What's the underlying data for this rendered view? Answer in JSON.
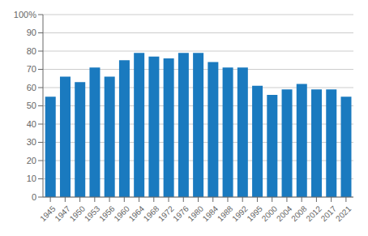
{
  "chart_data": {
    "type": "bar",
    "categories": [
      "1945",
      "1947",
      "1950",
      "1953",
      "1956",
      "1960",
      "1964",
      "1968",
      "1972",
      "1976",
      "1980",
      "1984",
      "1988",
      "1992",
      "1995",
      "2000",
      "2004",
      "2008",
      "2012",
      "2017",
      "2021"
    ],
    "values": [
      55,
      66,
      63,
      71,
      66,
      75,
      79,
      77,
      76,
      79,
      79,
      74,
      71,
      71,
      61,
      56,
      59,
      62,
      59,
      59,
      55
    ],
    "color": "#1a7abf",
    "ylim": [
      0,
      100
    ],
    "yticks": [
      0,
      10,
      20,
      30,
      40,
      50,
      60,
      70,
      80,
      90,
      {
        "value": 100,
        "label": "100%"
      }
    ],
    "grid": true
  }
}
